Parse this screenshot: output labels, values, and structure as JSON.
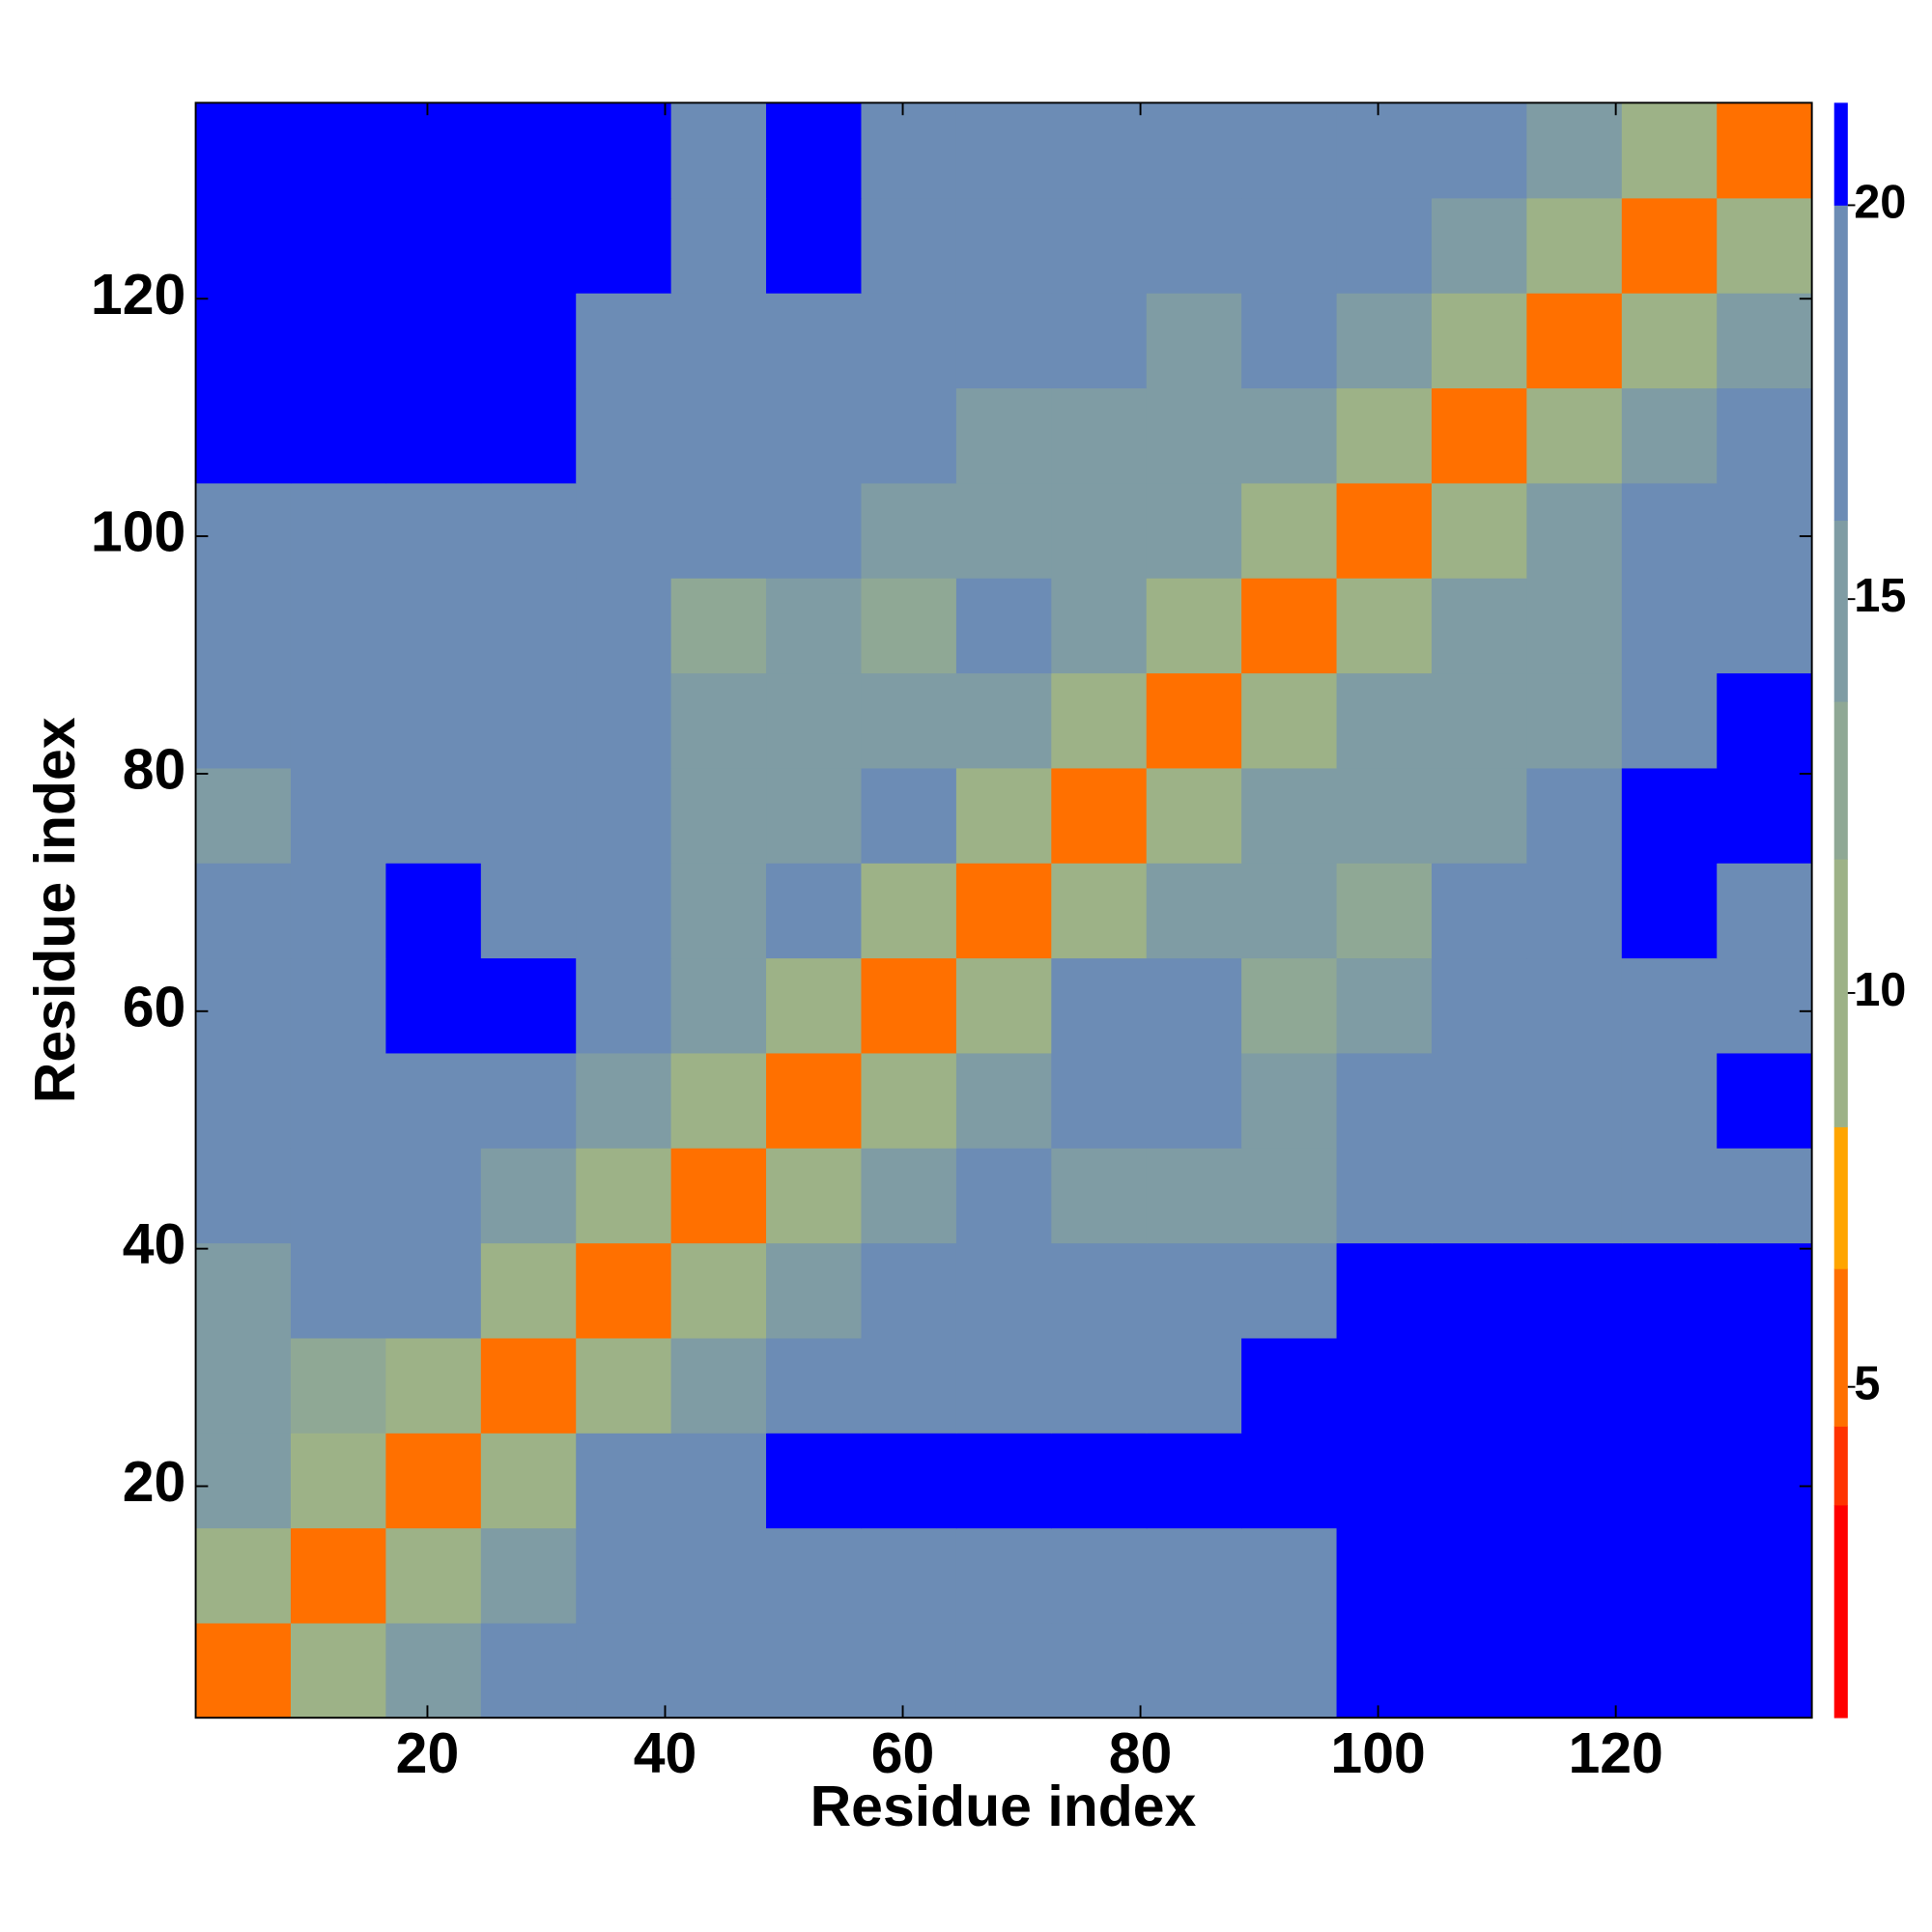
{
  "chart_data": {
    "type": "heatmap",
    "xlabel": "Residue index",
    "ylabel": "Residue index",
    "x_bins": [
      0.5,
      8.5,
      16.5,
      24.5,
      32.5,
      40.5,
      48.5,
      56.5,
      64.5,
      72.5,
      80.5,
      88.5,
      96.5,
      104.5,
      112.5,
      120.5,
      128.5,
      136.5
    ],
    "y_bins": [
      0.5,
      8.5,
      16.5,
      24.5,
      32.5,
      40.5,
      48.5,
      56.5,
      64.5,
      72.5,
      80.5,
      88.5,
      96.5,
      104.5,
      112.5,
      120.5,
      128.5,
      136.5
    ],
    "z": [
      [
        5,
        11,
        14,
        17,
        17,
        17,
        18,
        18,
        16,
        16,
        16,
        18,
        20,
        21,
        21,
        21,
        21
      ],
      [
        11,
        5,
        11,
        15,
        16,
        16,
        18,
        19,
        17,
        17,
        17,
        18,
        20,
        21,
        21,
        21,
        21
      ],
      [
        14,
        11,
        5,
        11,
        17,
        19,
        20,
        21,
        21,
        21,
        21,
        21,
        21,
        21,
        21,
        21,
        21
      ],
      [
        15,
        12,
        11,
        5,
        11,
        15,
        17,
        19,
        19,
        19,
        19,
        20,
        21,
        21,
        21,
        21,
        21
      ],
      [
        15,
        17,
        17,
        11,
        5,
        11,
        15,
        18,
        18,
        17,
        17,
        18,
        20,
        21,
        21,
        21,
        21
      ],
      [
        16,
        17,
        18,
        15,
        11,
        5,
        11,
        14,
        16,
        15,
        14,
        15,
        17,
        18,
        18,
        19,
        19
      ],
      [
        18,
        18,
        19,
        17,
        14,
        11,
        5,
        11,
        14,
        16,
        16,
        15,
        17,
        18,
        18,
        19,
        20
      ],
      [
        19,
        19,
        20,
        20,
        18,
        14,
        11,
        5,
        11,
        16,
        17,
        12,
        14,
        17,
        18,
        19,
        18
      ],
      [
        16,
        18,
        20,
        19,
        16,
        15,
        16,
        11,
        5,
        11,
        15,
        15,
        13,
        16,
        18,
        20,
        18
      ],
      [
        15,
        17,
        19,
        17,
        16,
        14,
        15,
        16,
        11,
        5,
        11,
        15,
        14,
        14,
        17,
        20,
        20
      ],
      [
        17,
        18,
        19,
        17,
        16,
        14,
        14,
        15,
        14,
        11,
        5,
        11,
        15,
        14,
        15,
        19,
        20
      ],
      [
        17,
        19,
        18,
        17,
        16,
        13,
        14,
        12,
        16,
        15,
        11,
        5,
        11,
        15,
        15,
        18,
        19
      ],
      [
        18,
        19,
        18,
        17,
        16,
        17,
        16,
        14,
        14,
        15,
        15,
        11,
        5,
        11,
        15,
        16,
        18
      ],
      [
        21,
        21,
        21,
        20,
        17,
        17,
        17,
        16,
        14,
        14,
        15,
        15,
        11,
        5,
        11,
        15,
        17
      ],
      [
        21,
        21,
        21,
        21,
        19,
        18,
        18,
        17,
        17,
        16,
        15,
        16,
        15,
        11,
        5,
        11,
        14
      ],
      [
        21,
        21,
        21,
        21,
        20,
        19,
        20,
        19,
        19,
        17,
        17,
        18,
        17,
        15,
        11,
        5,
        11
      ],
      [
        21,
        21,
        21,
        21,
        20,
        19,
        20,
        19,
        18,
        19,
        19,
        18,
        19,
        17,
        14,
        11,
        5
      ]
    ],
    "xlim": [
      0.5,
      136.5
    ],
    "ylim": [
      0.5,
      136.5
    ],
    "xticks": [
      20,
      40,
      60,
      80,
      100,
      120
    ],
    "yticks": [
      20,
      40,
      60,
      80,
      100,
      120
    ],
    "colorbar": {
      "bounds": [
        0.8,
        3.5,
        4.5,
        6.5,
        8.3,
        11.7,
        13.7,
        16,
        20,
        21.3
      ],
      "colors": [
        "#ff0000",
        "#ff3300",
        "#ff7000",
        "#ffa500",
        "#9db287",
        "#8fa895",
        "#7f9ca4",
        "#6c8cb5",
        "#0000ff"
      ],
      "ticks": [
        5,
        10,
        15,
        20
      ]
    }
  }
}
